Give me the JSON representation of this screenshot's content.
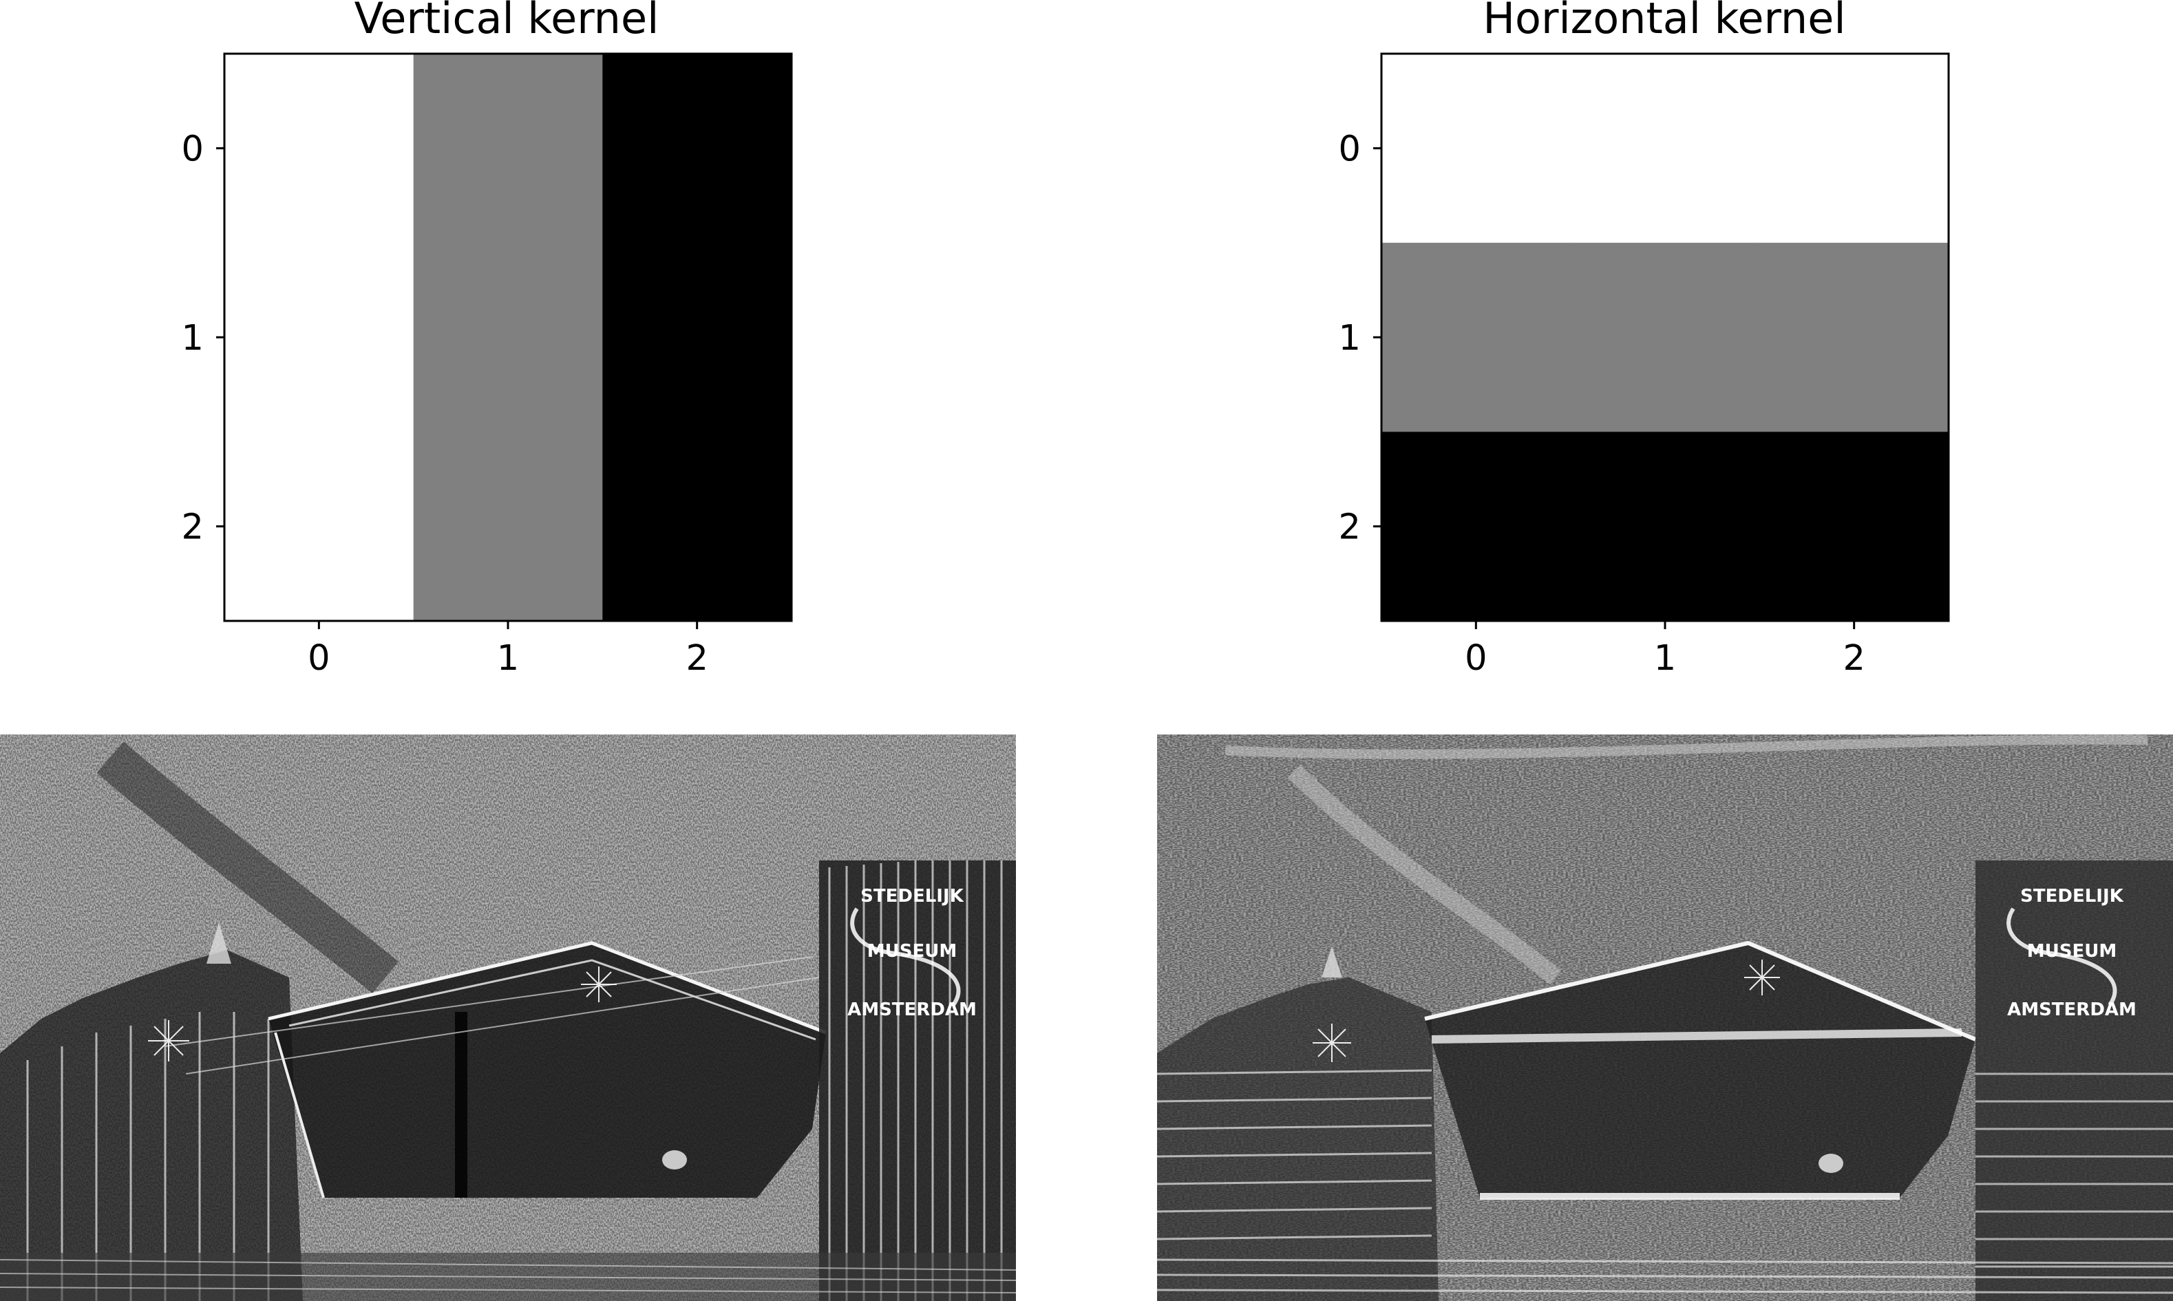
{
  "figure": {
    "background": "#ffffff",
    "edge_image_dark": "#0d0d0d",
    "edge_image_light": "#f2f2f2",
    "edge_image_mid": "#777777"
  },
  "chart_data": [
    {
      "type": "heatmap",
      "title": "Vertical kernel",
      "colormap": "gray",
      "x_ticks": [
        "0",
        "1",
        "2"
      ],
      "y_ticks": [
        "0",
        "1",
        "2"
      ],
      "xlim": [
        -0.5,
        2.5
      ],
      "ylim": [
        2.5,
        -0.5
      ],
      "grid": false,
      "values": [
        [
          1,
          0,
          -1
        ],
        [
          1,
          0,
          -1
        ],
        [
          1,
          0,
          -1
        ]
      ],
      "colors": [
        [
          "#ffffff",
          "#808080",
          "#000000"
        ],
        [
          "#ffffff",
          "#808080",
          "#000000"
        ],
        [
          "#ffffff",
          "#808080",
          "#000000"
        ]
      ]
    },
    {
      "type": "heatmap",
      "title": "Horizontal kernel",
      "colormap": "gray",
      "x_ticks": [
        "0",
        "1",
        "2"
      ],
      "y_ticks": [
        "0",
        "1",
        "2"
      ],
      "xlim": [
        -0.5,
        2.5
      ],
      "ylim": [
        2.5,
        -0.5
      ],
      "grid": false,
      "values": [
        [
          1,
          1,
          1
        ],
        [
          0,
          0,
          0
        ],
        [
          -1,
          -1,
          -1
        ]
      ],
      "colors": [
        [
          "#ffffff",
          "#ffffff",
          "#ffffff"
        ],
        [
          "#808080",
          "#808080",
          "#808080"
        ],
        [
          "#000000",
          "#000000",
          "#000000"
        ]
      ]
    }
  ],
  "filtered_images": [
    {
      "name": "vertical-edge-result",
      "sign_text": [
        "STEDELIJK",
        "MUSEUM",
        "AMSTERDAM"
      ]
    },
    {
      "name": "horizontal-edge-result",
      "sign_text": [
        "STEDELIJK",
        "MUSEUM",
        "AMSTERDAM"
      ]
    }
  ]
}
